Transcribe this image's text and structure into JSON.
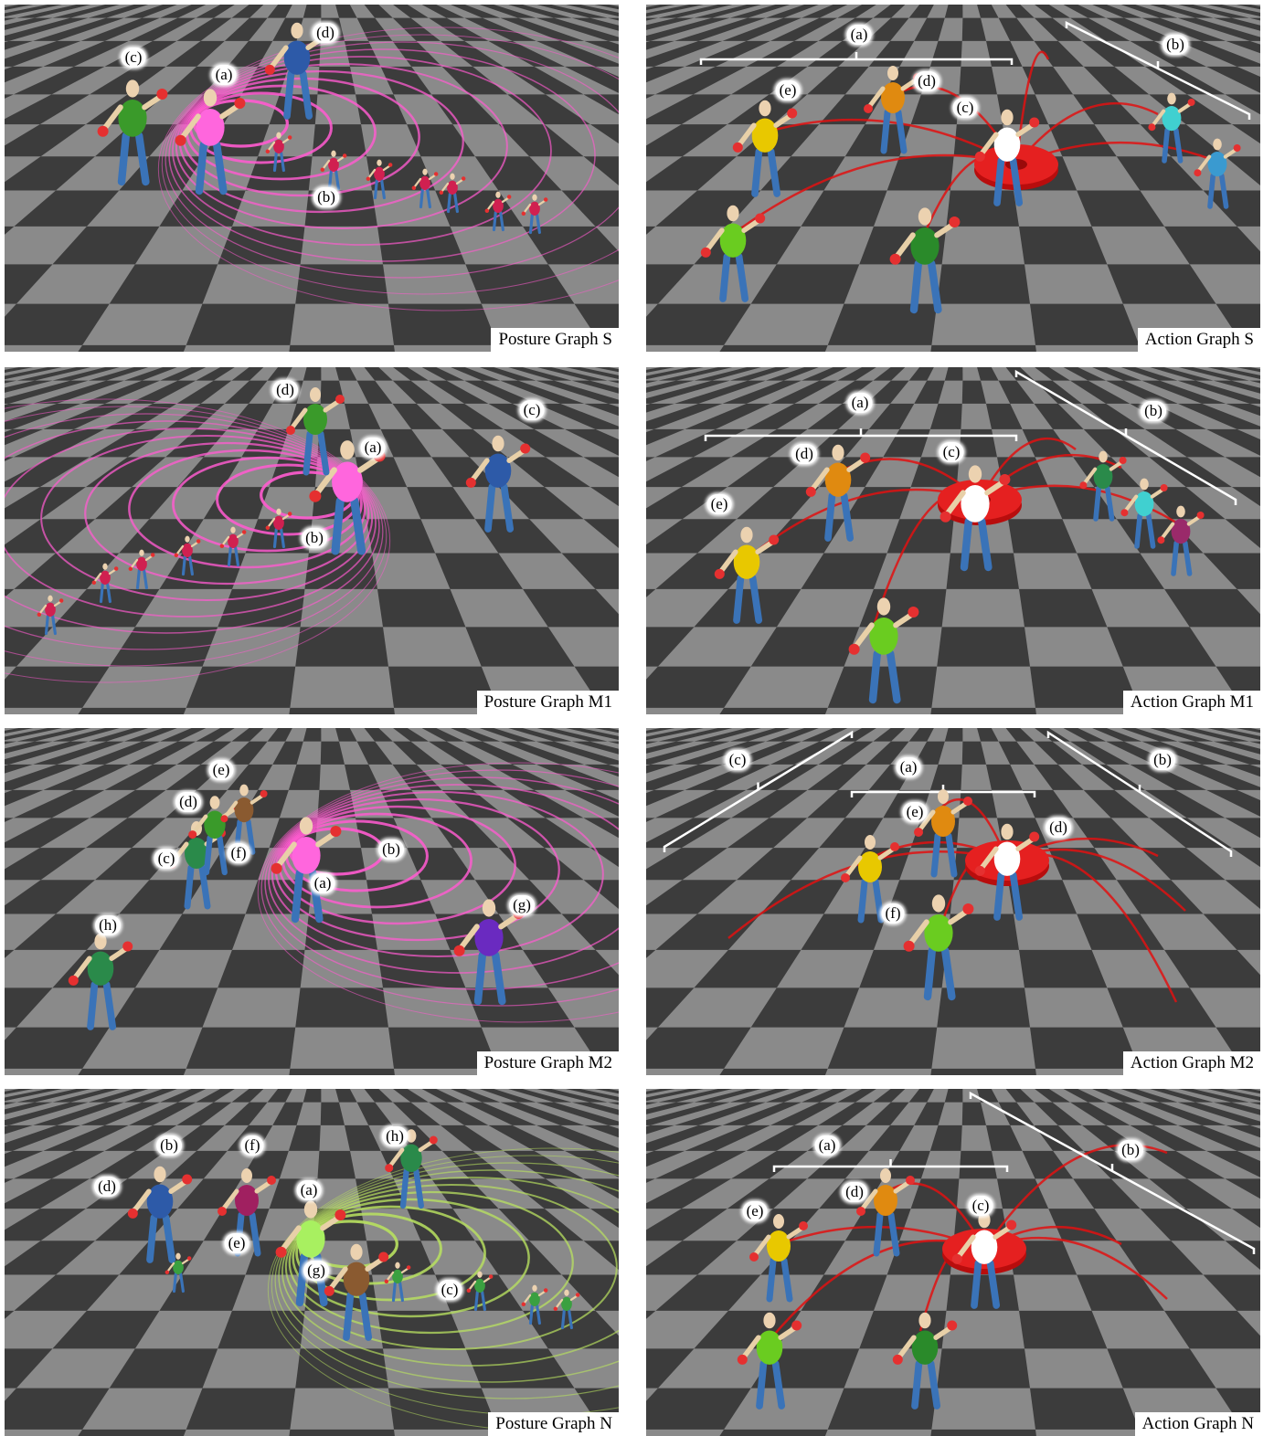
{
  "panels": [
    {
      "id": "posture-s",
      "caption": "Posture Graph S",
      "kind": "posture",
      "theme": "#ff5bd0",
      "labels": [
        {
          "t": "(a)"
        },
        {
          "t": "(b)"
        },
        {
          "t": "(c)"
        },
        {
          "t": "(d)"
        }
      ]
    },
    {
      "id": "action-s",
      "caption": "Action Graph S",
      "kind": "action",
      "theme": "#e01010",
      "labels": [
        {
          "t": "(a)"
        },
        {
          "t": "(b)"
        },
        {
          "t": "(c)"
        },
        {
          "t": "(d)"
        },
        {
          "t": "(e)"
        }
      ]
    },
    {
      "id": "posture-m1",
      "caption": "Posture Graph M1",
      "kind": "posture",
      "theme": "#ff5bd0",
      "labels": [
        {
          "t": "(a)"
        },
        {
          "t": "(b)"
        },
        {
          "t": "(c)"
        },
        {
          "t": "(d)"
        }
      ]
    },
    {
      "id": "action-m1",
      "caption": "Action Graph M1",
      "kind": "action",
      "theme": "#e01010",
      "labels": [
        {
          "t": "(a)"
        },
        {
          "t": "(b)"
        },
        {
          "t": "(c)"
        },
        {
          "t": "(d)"
        },
        {
          "t": "(e)"
        }
      ]
    },
    {
      "id": "posture-m2",
      "caption": "Posture Graph M2",
      "kind": "posture",
      "theme": "#ff5bd0",
      "labels": [
        {
          "t": "(a)"
        },
        {
          "t": "(b)"
        },
        {
          "t": "(c)"
        },
        {
          "t": "(d)"
        },
        {
          "t": "(e)"
        },
        {
          "t": "(f)"
        },
        {
          "t": "(g)"
        },
        {
          "t": "(h)"
        }
      ]
    },
    {
      "id": "action-m2",
      "caption": "Action Graph M2",
      "kind": "action",
      "theme": "#e01010",
      "labels": [
        {
          "t": "(a)"
        },
        {
          "t": "(b)"
        },
        {
          "t": "(c)"
        },
        {
          "t": "(d)"
        },
        {
          "t": "(e)"
        },
        {
          "t": "(f)"
        }
      ]
    },
    {
      "id": "posture-n",
      "caption": "Posture Graph N",
      "kind": "posture",
      "theme": "#b8e060",
      "labels": [
        {
          "t": "(a)"
        },
        {
          "t": "(b)"
        },
        {
          "t": "(c)"
        },
        {
          "t": "(d)"
        },
        {
          "t": "(e)"
        },
        {
          "t": "(f)"
        },
        {
          "t": "(g)"
        },
        {
          "t": "(h)"
        }
      ]
    },
    {
      "id": "action-n",
      "caption": "Action Graph N",
      "kind": "action",
      "theme": "#e01010",
      "labels": [
        {
          "t": "(a)"
        },
        {
          "t": "(b)"
        },
        {
          "t": "(c)"
        },
        {
          "t": "(d)"
        },
        {
          "t": "(e)"
        }
      ]
    }
  ]
}
